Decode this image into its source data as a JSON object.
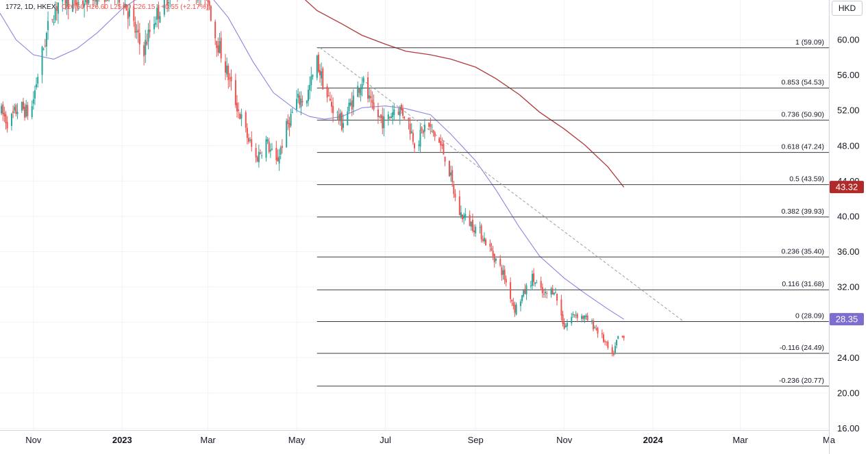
{
  "header": {
    "symbol": "1772, 1D, HKEX",
    "ohlc": "O26.60 H26.60 L25.70 C26.15",
    "change": "+0.55 (+2.17%)"
  },
  "currency_button": "HKD",
  "colors": {
    "up": "#26a69a",
    "down": "#ef5350",
    "ma_short": "#8a86e0",
    "ma_long": "#b03a3a",
    "fib_line": "#3a3a3a",
    "trend_line": "#9e9e9e",
    "grid": "#f0f3fa",
    "badge_long": "#b02a2a",
    "badge_short": "#7e6ccf"
  },
  "chart_data": {
    "type": "candlestick",
    "y_axis": {
      "ticks": [
        16,
        20,
        24,
        28,
        32,
        36,
        40,
        44,
        48,
        52,
        56,
        60
      ],
      "tick_labels": [
        "16.00",
        "20.00",
        "24.00",
        "28.00",
        "32.00",
        "36.00",
        "40.00",
        "44.00",
        "48.00",
        "52.00",
        "56.00",
        "60.00"
      ],
      "range": [
        15.8,
        64.5
      ]
    },
    "x_axis": {
      "labels": [
        "Nov",
        "2023",
        "Mar",
        "May",
        "Jul",
        "Sep",
        "Nov",
        "2024",
        "Mar",
        "Ma"
      ],
      "label_dates": [
        "2022-11-01",
        "2023-01-01",
        "2023-03-01",
        "2023-05-01",
        "2023-07-01",
        "2023-09-01",
        "2023-11-01",
        "2024-01-01",
        "2024-03-01",
        "2024-05-01"
      ],
      "range": [
        "2022-10-09",
        "2024-05-01"
      ]
    },
    "price_badges": [
      {
        "label": "43.32",
        "value": 43.32,
        "series": "MA long"
      },
      {
        "label": "28.35",
        "value": 28.35,
        "series": "MA short"
      }
    ],
    "fibonacci": {
      "start_date": "2023-05-15",
      "end_date": "2024-01-22",
      "levels": [
        {
          "ratio": "1",
          "price": 59.09,
          "label": "1 (59.09)"
        },
        {
          "ratio": "0.853",
          "price": 54.53,
          "label": "0.853 (54.53)"
        },
        {
          "ratio": "0.736",
          "price": 50.9,
          "label": "0.736 (50.90)"
        },
        {
          "ratio": "0.618",
          "price": 47.24,
          "label": "0.618 (47.24)"
        },
        {
          "ratio": "0.5",
          "price": 43.59,
          "label": "0.5 (43.59)"
        },
        {
          "ratio": "0.382",
          "price": 39.93,
          "label": "0.382 (39.93)"
        },
        {
          "ratio": "0.236",
          "price": 35.4,
          "label": "0.236 (35.40)"
        },
        {
          "ratio": "0.116",
          "price": 31.68,
          "label": "0.116 (31.68)"
        },
        {
          "ratio": "0",
          "price": 28.09,
          "label": "0 (28.09)"
        },
        {
          "ratio": "-0.116",
          "price": 24.49,
          "label": "-0.116 (24.49)"
        },
        {
          "ratio": "-0.236",
          "price": 20.77,
          "label": "-0.236 (20.77)"
        }
      ]
    },
    "trend_line": {
      "start": [
        "2023-05-17",
        59.1
      ],
      "end": [
        "2024-01-22",
        28.1
      ]
    },
    "ma_long": [
      [
        "2023-05-01",
        65.4
      ],
      [
        "2023-05-15",
        63.3
      ],
      [
        "2023-06-01",
        61.8
      ],
      [
        "2023-06-15",
        60.5
      ],
      [
        "2023-07-01",
        59.5
      ],
      [
        "2023-07-15",
        58.7
      ],
      [
        "2023-08-01",
        58.3
      ],
      [
        "2023-08-15",
        57.8
      ],
      [
        "2023-09-01",
        56.9
      ],
      [
        "2023-09-15",
        55.6
      ],
      [
        "2023-10-01",
        53.8
      ],
      [
        "2023-10-15",
        51.8
      ],
      [
        "2023-11-01",
        49.9
      ],
      [
        "2023-11-15",
        48.1
      ],
      [
        "2023-12-01",
        45.6
      ],
      [
        "2023-12-12",
        43.3
      ]
    ],
    "ma_short": [
      [
        "2022-10-09",
        63.0
      ],
      [
        "2022-10-20",
        60.0
      ],
      [
        "2022-11-01",
        58.3
      ],
      [
        "2022-11-15",
        57.8
      ],
      [
        "2022-12-01",
        59.0
      ],
      [
        "2022-12-15",
        60.8
      ],
      [
        "2023-01-01",
        63.5
      ],
      [
        "2023-01-10",
        64.5
      ],
      [
        "2023-02-15",
        65.6
      ],
      [
        "2023-03-01",
        65.3
      ],
      [
        "2023-03-15",
        62.5
      ],
      [
        "2023-04-01",
        57.5
      ],
      [
        "2023-04-15",
        54.0
      ],
      [
        "2023-05-01",
        52.0
      ],
      [
        "2023-05-10",
        51.3
      ],
      [
        "2023-05-20",
        51.0
      ],
      [
        "2023-06-01",
        51.3
      ],
      [
        "2023-06-15",
        52.3
      ],
      [
        "2023-07-01",
        52.5
      ],
      [
        "2023-07-15",
        52.2
      ],
      [
        "2023-08-01",
        51.5
      ],
      [
        "2023-08-15",
        49.3
      ],
      [
        "2023-09-01",
        46.3
      ],
      [
        "2023-09-15",
        43.0
      ],
      [
        "2023-10-01",
        38.8
      ],
      [
        "2023-10-15",
        35.5
      ],
      [
        "2023-11-01",
        33.0
      ],
      [
        "2023-11-15",
        31.3
      ],
      [
        "2023-12-01",
        29.5
      ],
      [
        "2023-12-12",
        28.35
      ]
    ],
    "price_path": [
      [
        "2022-10-09",
        52.0
      ],
      [
        "2022-10-15",
        50.5
      ],
      [
        "2022-10-22",
        52.5
      ],
      [
        "2022-10-30",
        51.5
      ],
      [
        "2022-11-05",
        57.0
      ],
      [
        "2022-11-12",
        62.0
      ],
      [
        "2022-11-20",
        65.0
      ],
      [
        "2022-12-01",
        64.0
      ],
      [
        "2022-12-15",
        65.5
      ],
      [
        "2023-01-01",
        65.0
      ],
      [
        "2023-01-08",
        62.0
      ],
      [
        "2023-01-15",
        58.5
      ],
      [
        "2023-01-22",
        62.0
      ],
      [
        "2023-02-01",
        65.0
      ],
      [
        "2023-02-15",
        66.5
      ],
      [
        "2023-03-01",
        65.0
      ],
      [
        "2023-03-05",
        61.0
      ],
      [
        "2023-03-12",
        57.5
      ],
      [
        "2023-03-20",
        53.0
      ],
      [
        "2023-03-27",
        49.5
      ],
      [
        "2023-04-03",
        46.5
      ],
      [
        "2023-04-10",
        48.5
      ],
      [
        "2023-04-17",
        46.0
      ],
      [
        "2023-04-24",
        50.0
      ],
      [
        "2023-05-01",
        53.0
      ],
      [
        "2023-05-08",
        53.5
      ],
      [
        "2023-05-15",
        57.5
      ],
      [
        "2023-05-22",
        53.5
      ],
      [
        "2023-06-01",
        50.5
      ],
      [
        "2023-06-08",
        53.0
      ],
      [
        "2023-06-15",
        55.5
      ],
      [
        "2023-06-22",
        52.0
      ],
      [
        "2023-07-01",
        50.5
      ],
      [
        "2023-07-08",
        52.5
      ],
      [
        "2023-07-15",
        51.5
      ],
      [
        "2023-07-22",
        48.0
      ],
      [
        "2023-07-29",
        50.5
      ],
      [
        "2023-08-05",
        49.0
      ],
      [
        "2023-08-12",
        46.5
      ],
      [
        "2023-08-20",
        40.5
      ],
      [
        "2023-08-27",
        39.5
      ],
      [
        "2023-09-05",
        38.0
      ],
      [
        "2023-09-12",
        36.0
      ],
      [
        "2023-09-20",
        33.5
      ],
      [
        "2023-09-28",
        29.5
      ],
      [
        "2023-10-05",
        31.5
      ],
      [
        "2023-10-10",
        33.0
      ],
      [
        "2023-10-18",
        31.0
      ],
      [
        "2023-10-25",
        31.8
      ],
      [
        "2023-11-01",
        27.5
      ],
      [
        "2023-11-08",
        29.0
      ],
      [
        "2023-11-15",
        28.5
      ],
      [
        "2023-11-22",
        27.5
      ],
      [
        "2023-11-28",
        26.0
      ],
      [
        "2023-12-04",
        24.0
      ],
      [
        "2023-12-08",
        26.3
      ],
      [
        "2023-12-12",
        26.2
      ]
    ]
  }
}
